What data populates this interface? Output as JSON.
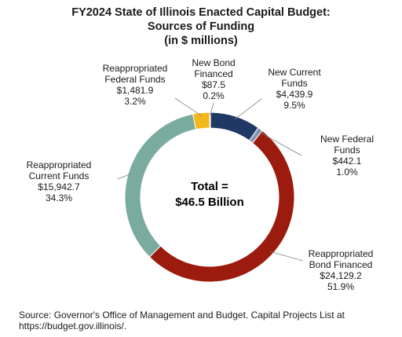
{
  "chart_data": {
    "type": "pie",
    "style": "donut",
    "title": "FY2024 State of Illinois Enacted Capital Budget:",
    "subtitle": "Sources of Funding",
    "unit_note": "(in $ millions)",
    "center_label": [
      "Total =",
      "$46.5 Billion"
    ],
    "slices": [
      {
        "name": "New Bond Financed",
        "label_lines": [
          "New Bond",
          "Financed"
        ],
        "value": 87.5,
        "value_label": "$87.5",
        "percent_label": "0.2%",
        "color": "#1f3864"
      },
      {
        "name": "New Current Funds",
        "label_lines": [
          "New Current",
          "Funds"
        ],
        "value": 4439.9,
        "value_label": "$4,439.9",
        "percent_label": "9.5%",
        "color": "#1f3864"
      },
      {
        "name": "New Federal Funds",
        "label_lines": [
          "New Federal",
          "Funds"
        ],
        "value": 442.1,
        "value_label": "$442.1",
        "percent_label": "1.0%",
        "color": "#8497b0"
      },
      {
        "name": "Reappropriated Bond Financed",
        "label_lines": [
          "Reappropriated",
          "Bond Financed"
        ],
        "value": 24129.2,
        "value_label": "$24,129.2",
        "percent_label": "51.9%",
        "color": "#9b1b0e"
      },
      {
        "name": "Reappropriated Current Funds",
        "label_lines": [
          "Reappropriated",
          "Current  Funds"
        ],
        "value": 15942.7,
        "value_label": "$15,942.7",
        "percent_label": "34.3%",
        "color": "#79ab9f"
      },
      {
        "name": "Reappropriated Federal Funds",
        "label_lines": [
          "Reappropriated",
          "Federal  Funds"
        ],
        "value": 1481.9,
        "value_label": "$1,481.9",
        "percent_label": "3.2%",
        "color": "#f2b81c"
      }
    ]
  },
  "source": [
    "Source: Governor's Office of Management and Budget. Capital Projects List at",
    "https://budget.gov.illinois/."
  ]
}
